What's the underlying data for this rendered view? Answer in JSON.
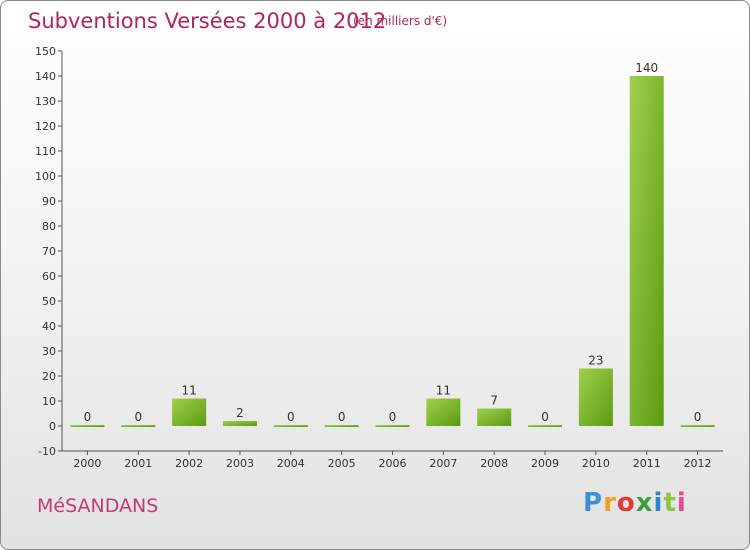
{
  "header": {
    "title": "Subventions Versées 2000 à 2012",
    "subtitle": "(en milliers d'€)"
  },
  "footer": {
    "commune": "MéSANDANS",
    "logo_letters": [
      "P",
      "r",
      "o",
      "x",
      "i",
      "t",
      "i"
    ],
    "logo_colors": [
      "#3b8fd6",
      "#f0a21e",
      "#e23b2e",
      "#3c9f3c",
      "#2d86d0",
      "#8cc63e",
      "#e84a8a"
    ]
  },
  "colors": {
    "bar_light": "#9fd14c",
    "bar_dark": "#5c9a12",
    "axis": "#555555",
    "grid": "#dddddd"
  },
  "chart_data": {
    "type": "bar",
    "title": "Subventions Versées 2000 à 2012",
    "subtitle": "(en milliers d'€)",
    "categories": [
      "2000",
      "2001",
      "2002",
      "2003",
      "2004",
      "2005",
      "2006",
      "2007",
      "2008",
      "2009",
      "2010",
      "2011",
      "2012"
    ],
    "values": [
      0,
      0,
      11,
      2,
      0,
      0,
      0,
      11,
      7,
      0,
      23,
      140,
      0
    ],
    "ylim": [
      -10,
      150
    ],
    "yticks": [
      -10,
      0,
      10,
      20,
      30,
      40,
      50,
      60,
      70,
      80,
      90,
      100,
      110,
      120,
      130,
      140,
      150
    ],
    "grid": false,
    "legend": "none"
  }
}
